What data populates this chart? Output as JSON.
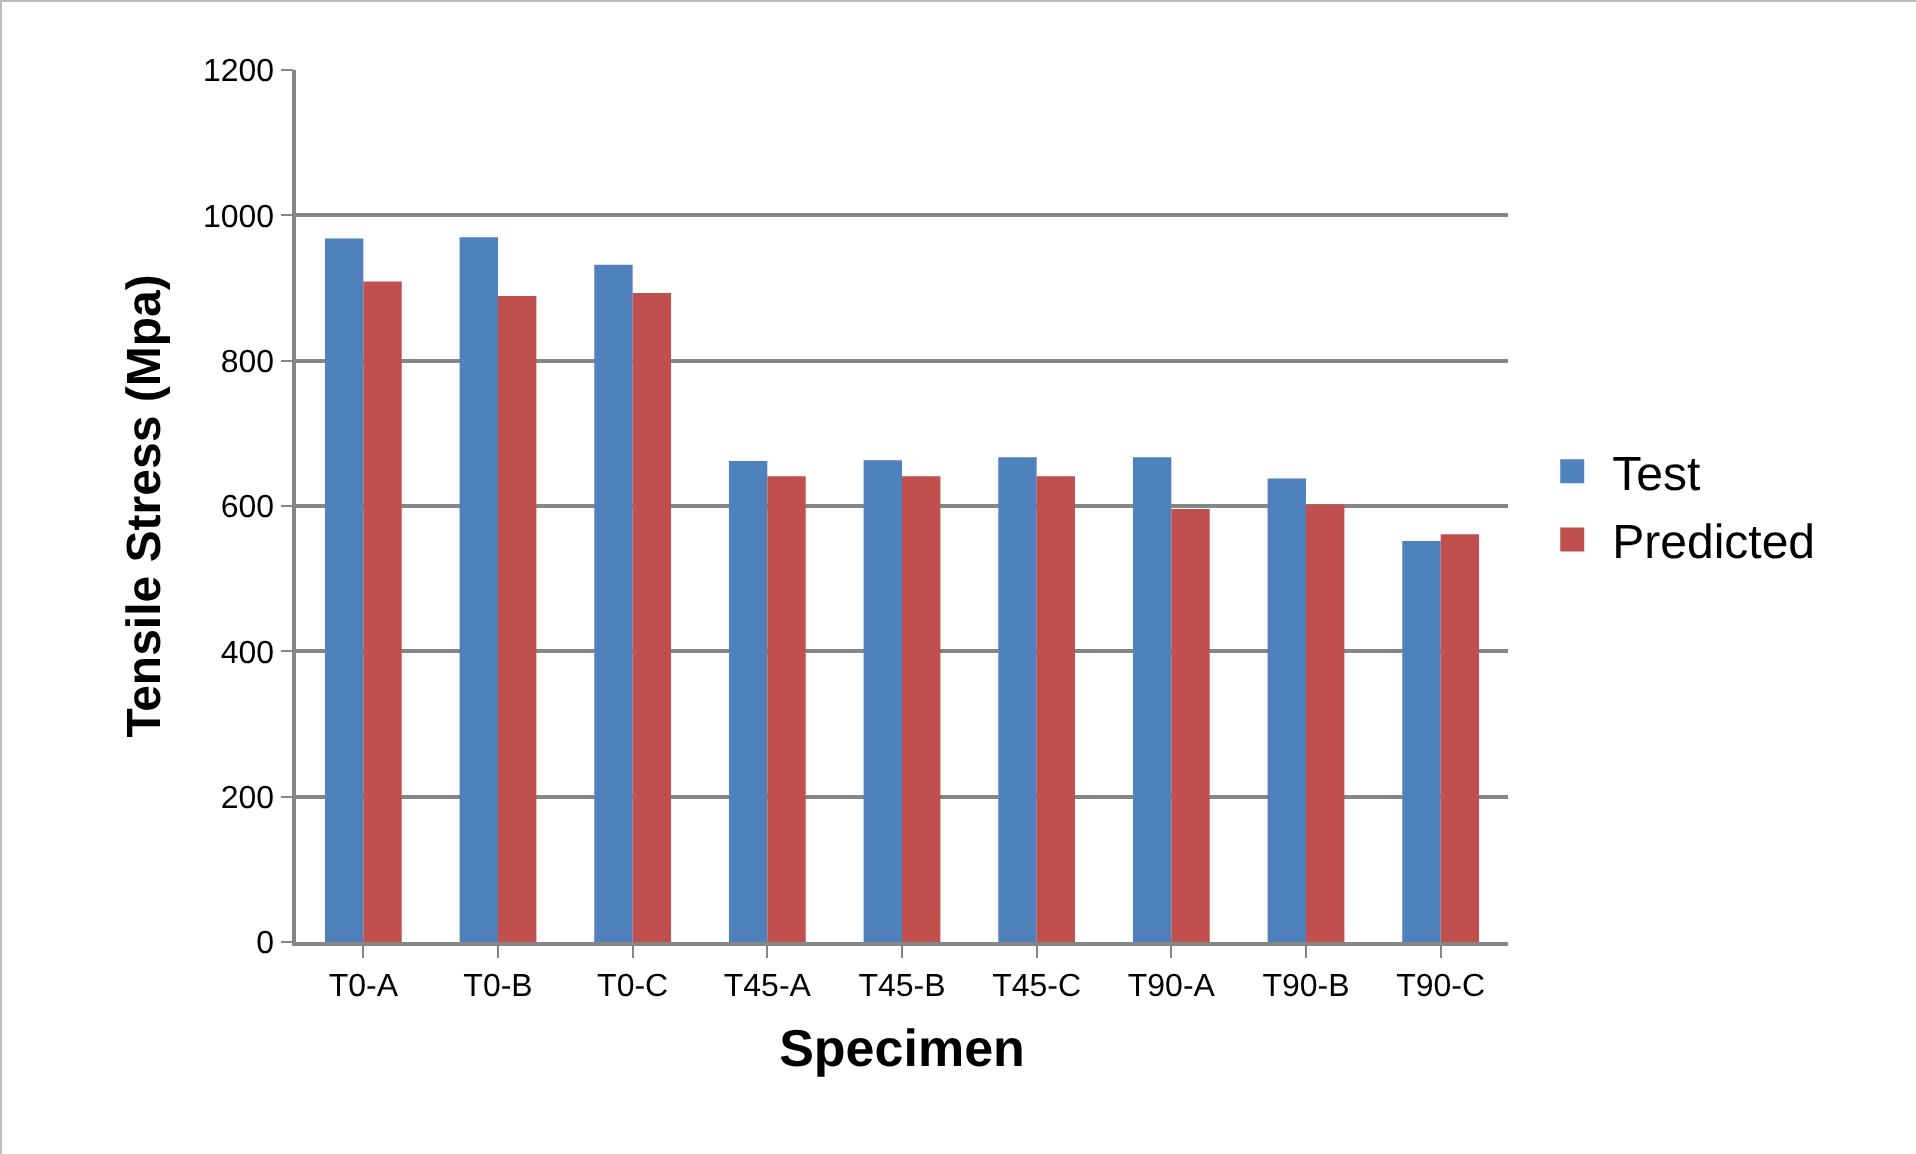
{
  "chart_data": {
    "type": "bar",
    "xlabel": "Specimen",
    "ylabel": "Tensile Stress (Mpa)",
    "categories": [
      "T0-A",
      "T0-B",
      "T0-C",
      "T45-A",
      "T45-B",
      "T45-C",
      "T90-A",
      "T90-B",
      "T90-C"
    ],
    "series": [
      {
        "name": "Test",
        "color": "#4f81bd",
        "values": [
          968,
          970,
          932,
          662,
          663,
          667,
          667,
          638,
          552
        ]
      },
      {
        "name": "Predicted",
        "color": "#c0504d",
        "values": [
          909,
          889,
          893,
          641,
          641,
          641,
          596,
          602,
          561
        ]
      }
    ],
    "ylim": [
      0,
      1200
    ],
    "yticks": [
      0,
      200,
      400,
      600,
      800,
      1000,
      1200
    ],
    "grid": "y",
    "legend": "right"
  }
}
